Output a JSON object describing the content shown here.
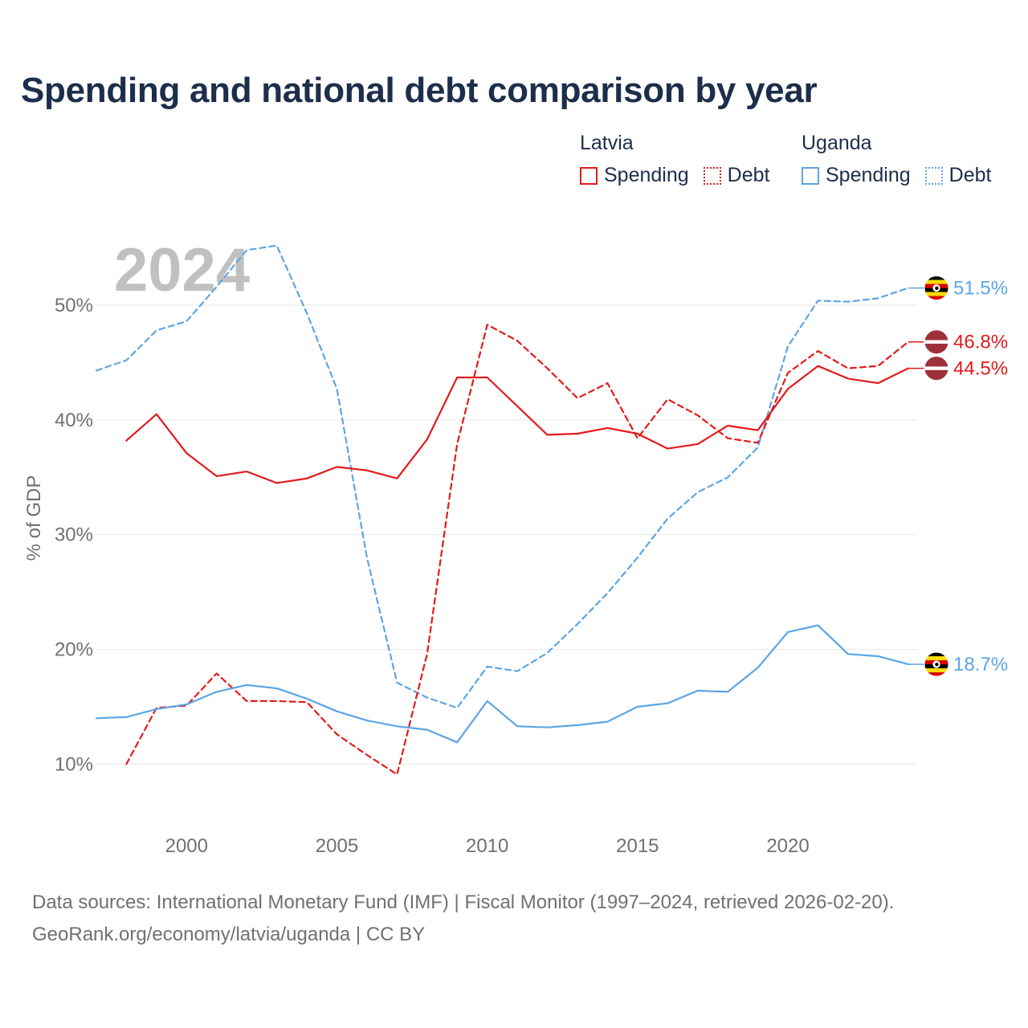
{
  "title": "Spending and national debt comparison by year",
  "legend": {
    "groups": [
      {
        "country": "Latvia",
        "color": "#e31a1c",
        "items": [
          {
            "label": "Spending",
            "style": "solid"
          },
          {
            "label": "Debt",
            "style": "dotted"
          }
        ]
      },
      {
        "country": "Uganda",
        "color": "#5da5e3",
        "items": [
          {
            "label": "Spending",
            "style": "solid"
          },
          {
            "label": "Debt",
            "style": "dotted"
          }
        ]
      }
    ]
  },
  "year_watermark": "2024",
  "source": {
    "line1": "Data sources: International Monetary Fund (IMF) | Fiscal Monitor (1997–2024, retrieved 2026-02-20).",
    "line2": "GeoRank.org/economy/latvia/uganda | CC BY"
  },
  "chart_data": {
    "type": "line",
    "ylabel": "% of GDP",
    "xlabel": "",
    "xlim": [
      1997,
      2024.3
    ],
    "ylim": [
      5.2,
      57
    ],
    "x_ticks": [
      2000,
      2005,
      2010,
      2015,
      2020
    ],
    "y_ticks": [
      {
        "value": 10,
        "label": "10%"
      },
      {
        "value": 20,
        "label": "20%"
      },
      {
        "value": 30,
        "label": "30%"
      },
      {
        "value": 40,
        "label": "40%"
      },
      {
        "value": 50,
        "label": "50%"
      }
    ],
    "grid": true,
    "series": [
      {
        "name": "Uganda Debt",
        "country": "Uganda",
        "measure": "Debt",
        "color": "#5da5e3",
        "dashed": true,
        "end_label": "51.5%",
        "flag": "uganda",
        "x": [
          1997,
          1998,
          1999,
          2000,
          2001,
          2002,
          2003,
          2004,
          2005,
          2006,
          2007,
          2008,
          2009,
          2010,
          2011,
          2012,
          2013,
          2014,
          2015,
          2016,
          2017,
          2018,
          2019,
          2020,
          2021,
          2022,
          2023,
          2024
        ],
        "values": [
          44.3,
          45.2,
          47.8,
          48.6,
          51.6,
          54.8,
          55.2,
          49.3,
          42.7,
          28.0,
          17.1,
          15.8,
          14.9,
          18.5,
          18.1,
          19.7,
          22.2,
          24.9,
          28.0,
          31.4,
          33.7,
          35.0,
          37.6,
          46.4,
          50.4,
          50.3,
          50.6,
          51.5
        ]
      },
      {
        "name": "Latvia Debt",
        "country": "Latvia",
        "measure": "Debt",
        "color": "#e31a1c",
        "dashed": true,
        "end_label": "46.8%",
        "flag": "latvia",
        "x": [
          1998,
          1999,
          2000,
          2001,
          2002,
          2003,
          2004,
          2005,
          2006,
          2007,
          2008,
          2009,
          2010,
          2011,
          2012,
          2013,
          2014,
          2015,
          2016,
          2017,
          2018,
          2019,
          2020,
          2021,
          2022,
          2023,
          2024
        ],
        "values": [
          10.0,
          14.9,
          15.1,
          17.9,
          15.5,
          15.5,
          15.4,
          12.6,
          10.8,
          9.1,
          19.6,
          37.9,
          48.3,
          46.9,
          44.5,
          41.9,
          43.2,
          38.4,
          41.8,
          40.4,
          38.4,
          38.0,
          44.1,
          46.0,
          44.5,
          44.7,
          46.8
        ]
      },
      {
        "name": "Latvia Spending",
        "country": "Latvia",
        "measure": "Spending",
        "color": "#e31a1c",
        "dashed": false,
        "end_label": "44.5%",
        "flag": "latvia",
        "x": [
          1998,
          1999,
          2000,
          2001,
          2002,
          2003,
          2004,
          2005,
          2006,
          2007,
          2008,
          2009,
          2010,
          2011,
          2012,
          2013,
          2014,
          2015,
          2016,
          2017,
          2018,
          2019,
          2020,
          2021,
          2022,
          2023,
          2024
        ],
        "values": [
          38.2,
          40.5,
          37.1,
          35.1,
          35.5,
          34.5,
          34.9,
          35.9,
          35.6,
          34.9,
          38.3,
          43.7,
          43.7,
          41.2,
          38.7,
          38.8,
          39.3,
          38.8,
          37.5,
          37.9,
          39.5,
          39.1,
          42.7,
          44.7,
          43.6,
          43.2,
          44.5
        ]
      },
      {
        "name": "Uganda Spending",
        "country": "Uganda",
        "measure": "Spending",
        "color": "#5da5e3",
        "dashed": false,
        "end_label": "18.7%",
        "flag": "uganda",
        "x": [
          1997,
          1998,
          1999,
          2000,
          2001,
          2002,
          2003,
          2004,
          2005,
          2006,
          2007,
          2008,
          2009,
          2010,
          2011,
          2012,
          2013,
          2014,
          2015,
          2016,
          2017,
          2018,
          2019,
          2020,
          2021,
          2022,
          2023,
          2024
        ],
        "values": [
          14.0,
          14.1,
          14.8,
          15.2,
          16.3,
          16.9,
          16.6,
          15.7,
          14.6,
          13.8,
          13.3,
          13.0,
          11.9,
          15.5,
          13.3,
          13.2,
          13.4,
          13.7,
          15.0,
          15.3,
          16.4,
          16.3,
          18.4,
          21.5,
          22.1,
          19.6,
          19.4,
          18.7
        ]
      }
    ]
  }
}
